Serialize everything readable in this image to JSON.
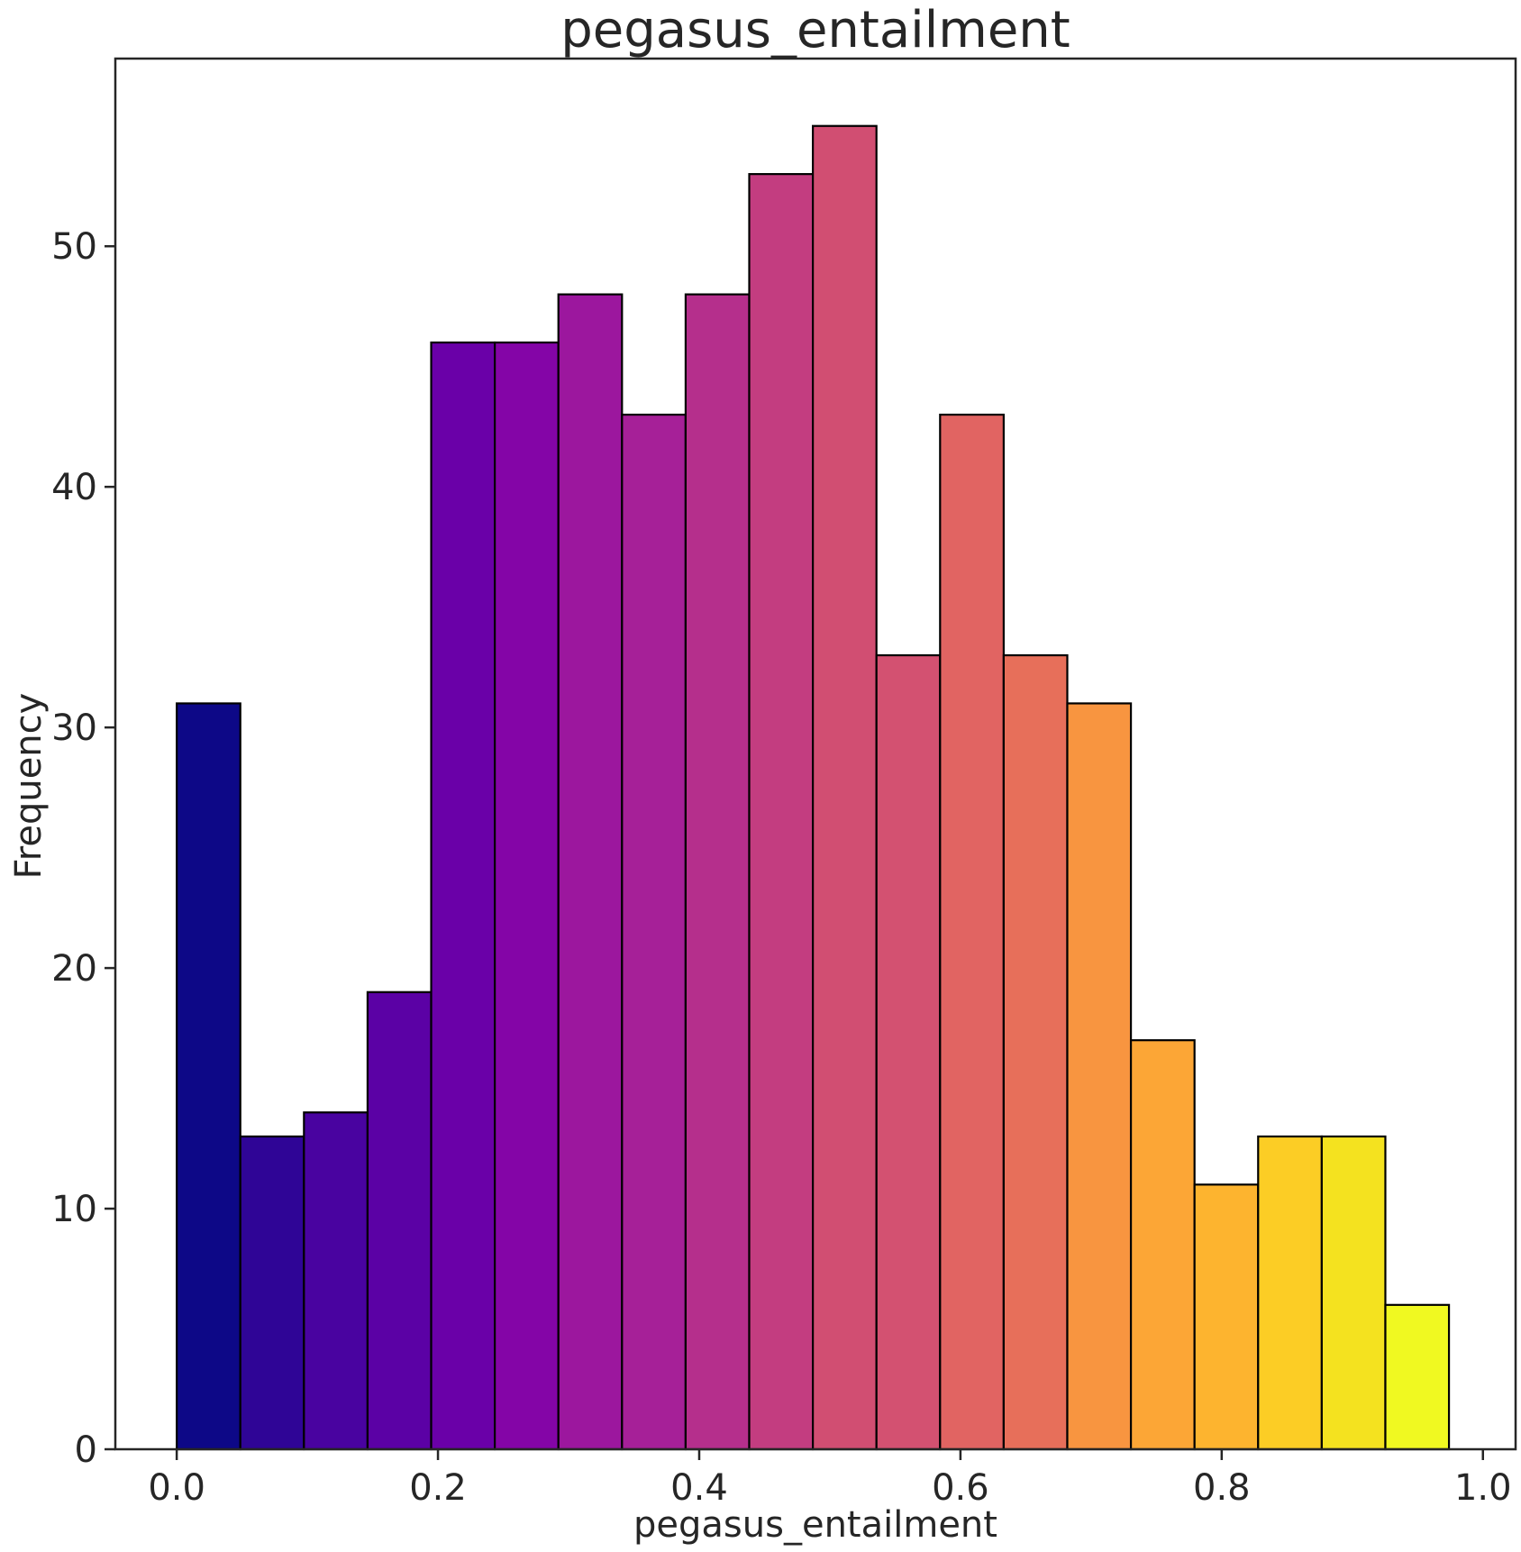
{
  "chart_data": {
    "type": "bar",
    "title": "pegasus_entailment",
    "xlabel": "pegasus_entailment",
    "ylabel": "Frequency",
    "xlim": [
      -0.047,
      1.025
    ],
    "ylim": [
      0,
      57.8
    ],
    "grid": false,
    "x_ticks": [
      {
        "value": 0.0,
        "label": "0.0"
      },
      {
        "value": 0.2,
        "label": "0.2"
      },
      {
        "value": 0.4,
        "label": "0.4"
      },
      {
        "value": 0.6,
        "label": "0.6"
      },
      {
        "value": 0.8,
        "label": "0.8"
      },
      {
        "value": 1.0,
        "label": "1.0"
      }
    ],
    "y_ticks": [
      {
        "value": 0,
        "label": "0"
      },
      {
        "value": 10,
        "label": "10"
      },
      {
        "value": 20,
        "label": "20"
      },
      {
        "value": 30,
        "label": "30"
      },
      {
        "value": 40,
        "label": "40"
      },
      {
        "value": 50,
        "label": "50"
      }
    ],
    "bins": [
      {
        "x0": 0.0,
        "x1": 0.0487,
        "value": 31,
        "color": "#0d0887"
      },
      {
        "x0": 0.0487,
        "x1": 0.0974,
        "value": 13,
        "color": "#2f0596"
      },
      {
        "x0": 0.0974,
        "x1": 0.1461,
        "value": 14,
        "color": "#4903a0"
      },
      {
        "x0": 0.1461,
        "x1": 0.1948,
        "value": 19,
        "color": "#5b01a5"
      },
      {
        "x0": 0.1948,
        "x1": 0.2435,
        "value": 46,
        "color": "#6a00a8"
      },
      {
        "x0": 0.2435,
        "x1": 0.2922,
        "value": 46,
        "color": "#8405a7"
      },
      {
        "x0": 0.2922,
        "x1": 0.3409,
        "value": 48,
        "color": "#9c179e"
      },
      {
        "x0": 0.3409,
        "x1": 0.3896,
        "value": 43,
        "color": "#a62098"
      },
      {
        "x0": 0.3896,
        "x1": 0.4383,
        "value": 48,
        "color": "#b52f8c"
      },
      {
        "x0": 0.4383,
        "x1": 0.487,
        "value": 53,
        "color": "#c33d80"
      },
      {
        "x0": 0.487,
        "x1": 0.5357,
        "value": 55,
        "color": "#d14e72"
      },
      {
        "x0": 0.5357,
        "x1": 0.5844,
        "value": 33,
        "color": "#d35171"
      },
      {
        "x0": 0.5844,
        "x1": 0.6331,
        "value": 43,
        "color": "#e16462"
      },
      {
        "x0": 0.6331,
        "x1": 0.6818,
        "value": 33,
        "color": "#e76f5a"
      },
      {
        "x0": 0.6818,
        "x1": 0.7305,
        "value": 31,
        "color": "#f89540"
      },
      {
        "x0": 0.7305,
        "x1": 0.7792,
        "value": 17,
        "color": "#fca636"
      },
      {
        "x0": 0.7792,
        "x1": 0.8279,
        "value": 11,
        "color": "#fdb42f"
      },
      {
        "x0": 0.8279,
        "x1": 0.8766,
        "value": 13,
        "color": "#fccd25"
      },
      {
        "x0": 0.8766,
        "x1": 0.9253,
        "value": 13,
        "color": "#f4e21f"
      },
      {
        "x0": 0.9253,
        "x1": 0.974,
        "value": 6,
        "color": "#f0f921"
      }
    ]
  }
}
